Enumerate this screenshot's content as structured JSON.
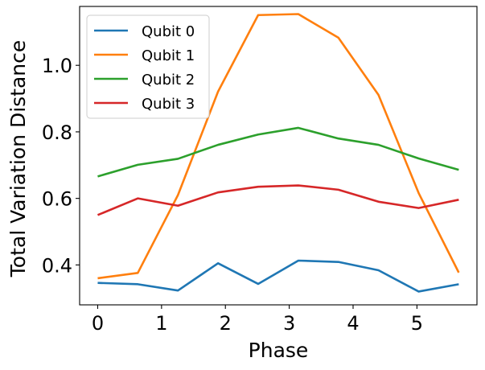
{
  "chart_data": {
    "type": "line",
    "title": "",
    "xlabel": "Phase",
    "ylabel": "Total Variation Distance",
    "xlim": [
      -0.283,
      5.94
    ],
    "ylim": [
      0.28,
      1.177
    ],
    "grid": false,
    "legend_position": "top-left",
    "x": [
      0,
      0.628,
      1.257,
      1.885,
      2.513,
      3.142,
      3.77,
      4.398,
      5.027,
      5.655
    ],
    "x_ticks": [
      0,
      1,
      2,
      3,
      4,
      5
    ],
    "x_tick_labels": [
      "0",
      "1",
      "2",
      "3",
      "4",
      "5"
    ],
    "y_ticks": [
      0.4,
      0.6,
      0.8,
      1.0
    ],
    "y_tick_labels": [
      "0.4",
      "0.6",
      "0.8",
      "1.0"
    ],
    "series": [
      {
        "name": "Qubit 0",
        "color": "#1f77b4",
        "values": [
          0.346,
          0.342,
          0.323,
          0.405,
          0.343,
          0.413,
          0.409,
          0.384,
          0.32,
          0.342
        ]
      },
      {
        "name": "Qubit 1",
        "color": "#ff7f0e",
        "values": [
          0.36,
          0.376,
          0.61,
          0.921,
          1.151,
          1.154,
          1.083,
          0.911,
          0.616,
          0.377
        ]
      },
      {
        "name": "Qubit 2",
        "color": "#2ca02c",
        "values": [
          0.666,
          0.701,
          0.719,
          0.761,
          0.792,
          0.812,
          0.78,
          0.761,
          0.72,
          0.686
        ]
      },
      {
        "name": "Qubit 3",
        "color": "#d62728",
        "values": [
          0.55,
          0.6,
          0.578,
          0.618,
          0.635,
          0.639,
          0.626,
          0.59,
          0.571,
          0.596
        ]
      }
    ]
  }
}
